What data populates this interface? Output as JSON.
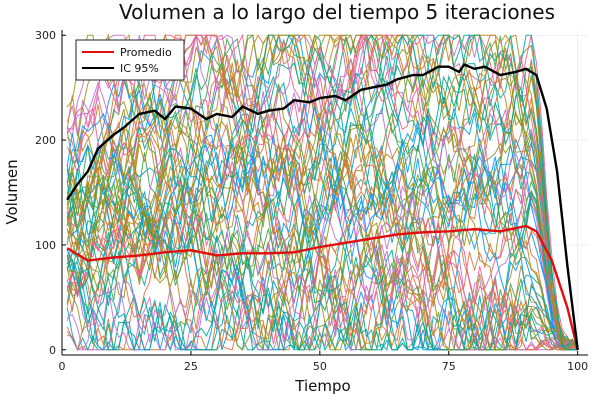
{
  "chart_data": {
    "type": "line",
    "title": "Volumen a lo largo del tiempo 5 iteraciones",
    "xlabel": "Tiempo",
    "ylabel": "Volumen",
    "xlim": [
      0,
      102
    ],
    "ylim": [
      -5,
      305
    ],
    "xticks": [
      0,
      25,
      50,
      75,
      100
    ],
    "yticks": [
      0,
      100,
      200,
      300
    ],
    "grid": true,
    "legend_position": "top-left",
    "background_series": {
      "description_count": 60,
      "x_start": 1,
      "x_end": 100,
      "upper_cap": 300,
      "lower_cap": 0,
      "palette": [
        "#009AFA",
        "#E36F47",
        "#3EA44E",
        "#C371D2",
        "#AC8D18",
        "#00A9AD",
        "#ED5E93",
        "#C68225",
        "#00A98D",
        "#8E971E"
      ]
    },
    "series": [
      {
        "name": "Promedio",
        "color": "#E20E0E",
        "x": [
          1,
          5,
          10,
          15,
          20,
          25,
          30,
          35,
          40,
          45,
          50,
          55,
          60,
          65,
          70,
          75,
          80,
          85,
          90,
          92,
          95,
          98,
          100
        ],
        "y": [
          97,
          85,
          88,
          90,
          93,
          95,
          90,
          92,
          92,
          93,
          98,
          102,
          106,
          110,
          112,
          113,
          115,
          113,
          118,
          113,
          85,
          40,
          0
        ]
      },
      {
        "name": "IC 95%",
        "color": "#000000",
        "x": [
          1,
          3,
          5,
          7,
          10,
          12,
          15,
          18,
          20,
          22,
          25,
          28,
          30,
          33,
          35,
          38,
          40,
          43,
          45,
          48,
          50,
          53,
          55,
          58,
          60,
          63,
          65,
          68,
          70,
          73,
          75,
          77,
          78,
          80,
          82,
          85,
          88,
          90,
          92,
          94,
          96,
          98,
          100
        ],
        "y": [
          143,
          158,
          170,
          192,
          205,
          212,
          225,
          228,
          220,
          232,
          230,
          220,
          225,
          222,
          232,
          225,
          228,
          230,
          238,
          236,
          240,
          242,
          238,
          248,
          250,
          253,
          258,
          262,
          262,
          270,
          270,
          265,
          272,
          268,
          270,
          262,
          265,
          268,
          262,
          230,
          170,
          80,
          0
        ]
      }
    ]
  }
}
